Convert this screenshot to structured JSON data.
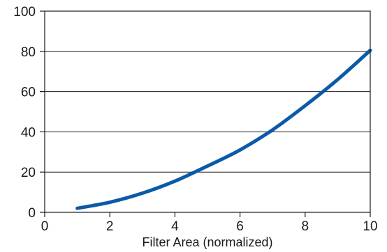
{
  "chart_data": {
    "type": "line",
    "title": "",
    "xlabel": "Filter Area (normalized)",
    "ylabel": "",
    "xlim": [
      0,
      10
    ],
    "ylim": [
      0,
      100
    ],
    "x_ticks": [
      0,
      2,
      4,
      6,
      8,
      10
    ],
    "y_ticks": [
      0,
      20,
      40,
      60,
      80,
      100
    ],
    "grid": "horizontal",
    "legend": "none",
    "series": [
      {
        "color": "#0a5aa8",
        "points": [
          [
            1,
            2
          ],
          [
            2,
            5
          ],
          [
            3,
            9.5
          ],
          [
            4,
            15.5
          ],
          [
            5,
            23
          ],
          [
            6,
            31
          ],
          [
            7,
            41
          ],
          [
            8,
            53
          ],
          [
            9,
            66
          ],
          [
            10,
            80.5
          ]
        ]
      }
    ]
  }
}
